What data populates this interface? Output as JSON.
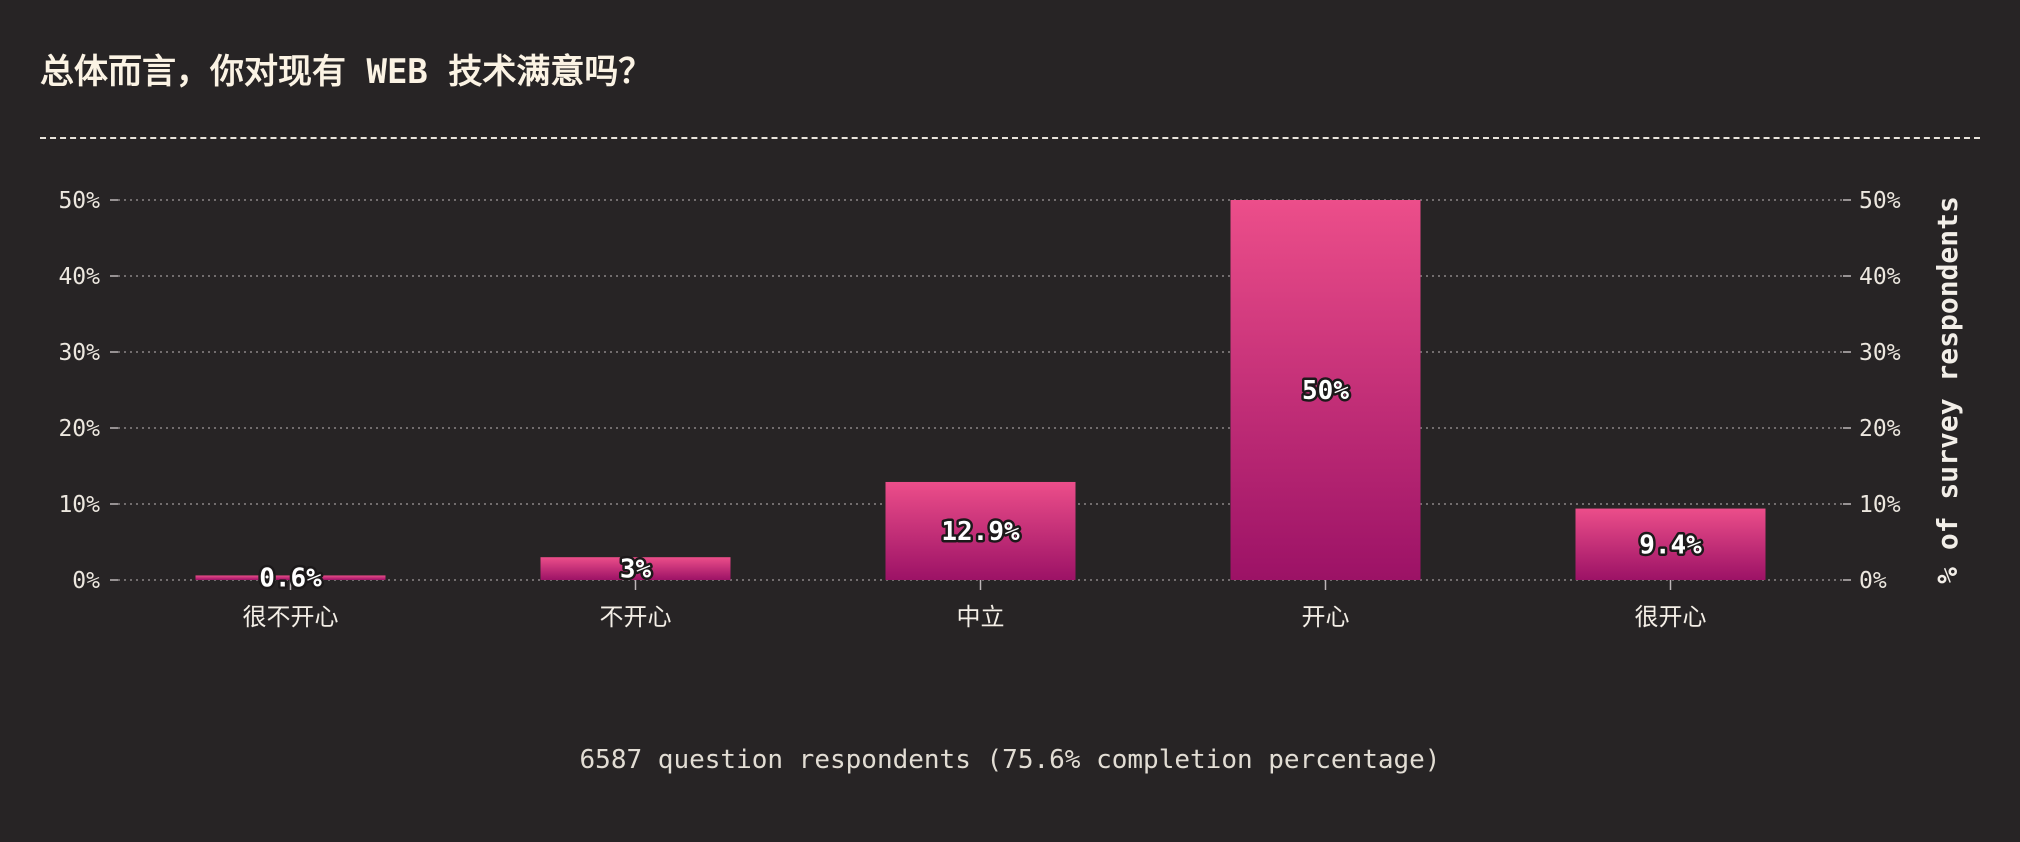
{
  "title": "总体而言，你对现有 WEB 技术满意吗？",
  "footer": "6587 question respondents (75.6% completion percentage)",
  "colors": {
    "background": "#272425",
    "bar_top": "#ec4e8a",
    "bar_bottom": "#9c1266",
    "grid": "#8b8587",
    "text": "#f2eee8"
  },
  "chart_data": {
    "type": "bar",
    "categories": [
      "很不开心",
      "不开心",
      "中立",
      "开心",
      "很开心"
    ],
    "values": [
      0.6,
      3,
      12.9,
      50,
      9.4
    ],
    "value_labels": [
      "0.6%",
      "3%",
      "12.9%",
      "50%",
      "9.4%"
    ],
    "xlabel": "",
    "ylabel": "% of survey respondents",
    "ylim": [
      0,
      50
    ],
    "yticks": [
      0,
      10,
      20,
      30,
      40,
      50
    ],
    "ytick_labels": [
      "0%",
      "10%",
      "20%",
      "30%",
      "40%",
      "50%"
    ],
    "grid": true,
    "y_axis_sides": [
      "left",
      "right"
    ]
  }
}
